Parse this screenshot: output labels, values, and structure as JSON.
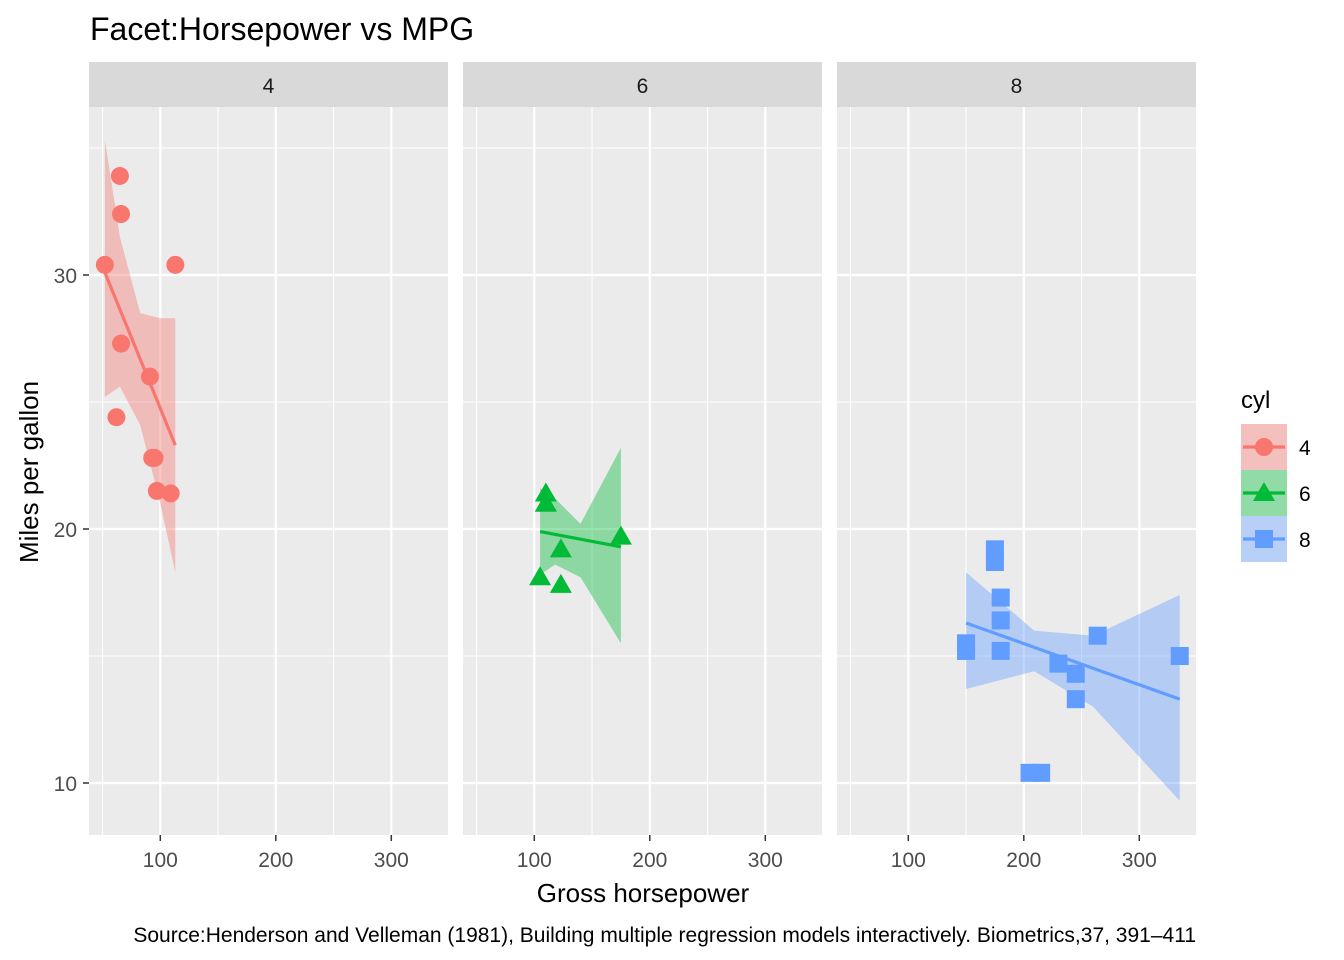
{
  "chart_data": {
    "type": "scatter",
    "title": "Facet:Horsepower vs MPG",
    "xlabel": "Gross horsepower",
    "ylabel": "Miles per gallon",
    "caption": "Source:Henderson and Velleman (1981), Building multiple regression models interactively. Biometrics,37, 391–411",
    "xlim": [
      40,
      350
    ],
    "ylim": [
      8,
      36
    ],
    "x_ticks": [
      100,
      200,
      300
    ],
    "y_ticks": [
      10,
      20,
      30
    ],
    "grid": true,
    "legend": {
      "title": "cyl",
      "position": "right"
    },
    "panels": [
      {
        "label": "4",
        "color": "#F8766D",
        "shape": "circle",
        "points": [
          [
            93,
            22.8
          ],
          [
            62,
            24.4
          ],
          [
            95,
            22.8
          ],
          [
            66,
            32.4
          ],
          [
            52,
            30.4
          ],
          [
            65,
            33.9
          ],
          [
            97,
            21.5
          ],
          [
            66,
            27.3
          ],
          [
            91,
            26.0
          ],
          [
            113,
            30.4
          ],
          [
            109,
            21.4
          ]
        ],
        "fit": {
          "x": [
            52,
            113
          ],
          "y": [
            30.1,
            23.3
          ]
        },
        "band": {
          "x": [
            52,
            65,
            82.6,
            100,
            113
          ],
          "lower": [
            25.2,
            25.6,
            24.1,
            21.0,
            18.3
          ],
          "upper": [
            35.3,
            31.5,
            28.5,
            28.3,
            28.3
          ]
        }
      },
      {
        "label": "6",
        "color": "#00BA38",
        "shape": "triangle",
        "points": [
          [
            110,
            21.0
          ],
          [
            110,
            21.0
          ],
          [
            110,
            21.4
          ],
          [
            105,
            18.1
          ],
          [
            123,
            19.2
          ],
          [
            123,
            17.8
          ],
          [
            175,
            19.7
          ]
        ],
        "fit": {
          "x": [
            105,
            175
          ],
          "y": [
            19.9,
            19.3
          ]
        },
        "band": {
          "x": [
            105,
            118,
            140,
            175
          ],
          "lower": [
            18.2,
            18.6,
            18.1,
            15.5
          ],
          "upper": [
            21.6,
            21.2,
            20.2,
            23.2
          ]
        }
      },
      {
        "label": "8",
        "color": "#619CFF",
        "shape": "square",
        "points": [
          [
            175,
            18.7
          ],
          [
            245,
            14.3
          ],
          [
            180,
            16.4
          ],
          [
            180,
            17.3
          ],
          [
            180,
            15.2
          ],
          [
            205,
            10.4
          ],
          [
            215,
            10.4
          ],
          [
            230,
            14.7
          ],
          [
            150,
            15.5
          ],
          [
            150,
            15.2
          ],
          [
            245,
            13.3
          ],
          [
            175,
            19.2
          ],
          [
            264,
            15.8
          ],
          [
            335,
            15.0
          ]
        ],
        "fit": {
          "x": [
            150,
            335
          ],
          "y": [
            16.3,
            13.3
          ]
        },
        "band": {
          "x": [
            150,
            209,
            260,
            335
          ],
          "lower": [
            13.7,
            14.4,
            13.0,
            9.3
          ],
          "upper": [
            18.3,
            16.0,
            15.8,
            17.4
          ]
        }
      }
    ]
  }
}
